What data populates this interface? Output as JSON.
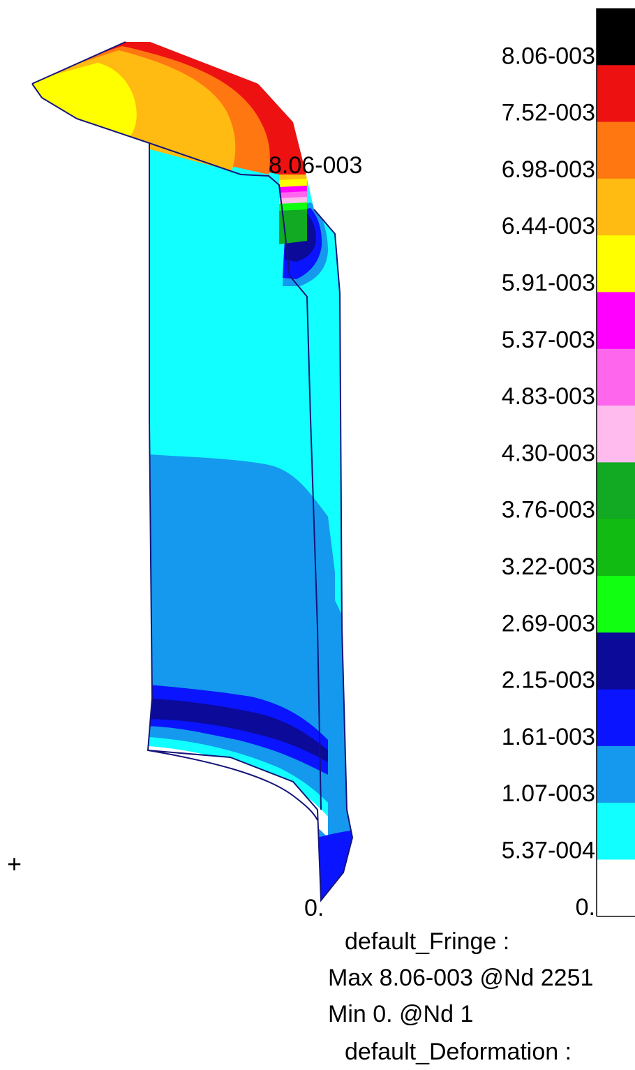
{
  "colors": {
    "black": "#000000",
    "red": "#ee1111",
    "orange": "#ff7711",
    "gold": "#ffbb11",
    "yellow": "#ffff00",
    "magenta": "#ff00ff",
    "pink": "#ff66ee",
    "lightpink": "#ffbbee",
    "green": "#11aa22",
    "green2": "#11bb11",
    "lime": "#11ff11",
    "navy": "#0b0a99",
    "blue": "#0a14ff",
    "skyblue": "#1599ee",
    "cyan": "#11ffff",
    "white": "#ffffff",
    "outline": "#15157a"
  },
  "legend": {
    "labels": [
      "8.06-003",
      "7.52-003",
      "6.98-003",
      "6.44-003",
      "5.91-003",
      "5.37-003",
      "4.83-003",
      "4.30-003",
      "3.76-003",
      "3.22-003",
      "2.69-003",
      "2.15-003",
      "1.61-003",
      "1.07-003",
      "5.37-004",
      "0."
    ],
    "band_colors": [
      "#000000",
      "#ee1111",
      "#ff7711",
      "#ffbb11",
      "#ffff00",
      "#ff00ff",
      "#ff66ee",
      "#ffbbee",
      "#11aa22",
      "#11bb11",
      "#11ff11",
      "#0b0a99",
      "#0a14ff",
      "#1599ee",
      "#11ffff",
      "#ffffff"
    ]
  },
  "model": {
    "max_label": "8.06-003",
    "min_label": "0.",
    "origin_marker": "+"
  },
  "info": {
    "fringe_title": "default_Fringe :",
    "max_line": "Max 8.06-003 @Nd 2251",
    "min_line": "Min  0. @Nd 1",
    "deformation_title": "default_Deformation :"
  }
}
